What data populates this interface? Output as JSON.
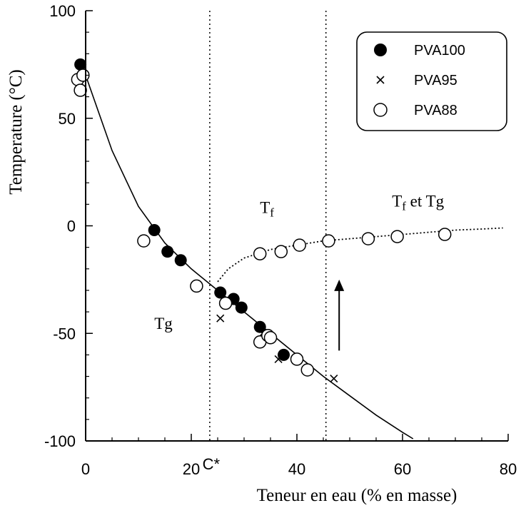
{
  "chart_data": {
    "type": "scatter",
    "title": "",
    "xlabel": "Teneur en eau (% en masse)",
    "ylabel": "Temperature (°C)",
    "xlim": [
      0,
      80
    ],
    "ylim": [
      -100,
      100
    ],
    "x_ticks": [
      0,
      20,
      40,
      60,
      80
    ],
    "x_tick_labels": [
      "0",
      "20",
      "40",
      "60",
      "80"
    ],
    "y_ticks": [
      -100,
      -50,
      0,
      50,
      100
    ],
    "y_tick_labels": [
      "-100",
      "-50",
      "0",
      "50",
      "100"
    ],
    "grid": false,
    "legend_position": "top-right",
    "series": [
      {
        "name": "PVA100",
        "marker": "filled-circle",
        "points": [
          [
            -1,
            75
          ],
          [
            13,
            -2
          ],
          [
            15.5,
            -12
          ],
          [
            18,
            -16
          ],
          [
            25.5,
            -31
          ],
          [
            28,
            -34
          ],
          [
            29.5,
            -38
          ],
          [
            33,
            -47
          ],
          [
            37.5,
            -60
          ]
        ]
      },
      {
        "name": "PVA95",
        "marker": "cross",
        "points": [
          [
            -1,
            72
          ],
          [
            25.5,
            -43
          ],
          [
            33.5,
            -50
          ],
          [
            36.5,
            -62
          ],
          [
            47,
            -71
          ]
        ]
      },
      {
        "name": "PVA88",
        "marker": "open-circle",
        "points": [
          [
            -1.5,
            68
          ],
          [
            -0.5,
            70
          ],
          [
            -1,
            63
          ],
          [
            11,
            -7
          ],
          [
            21,
            -28
          ],
          [
            26.5,
            -36
          ],
          [
            33,
            -54
          ],
          [
            34.5,
            -51
          ],
          [
            35,
            -52
          ],
          [
            40,
            -62
          ],
          [
            42,
            -67
          ],
          [
            33,
            -13
          ],
          [
            37,
            -12
          ],
          [
            40.5,
            -9
          ],
          [
            46,
            -7
          ],
          [
            53.5,
            -6
          ],
          [
            59,
            -5
          ],
          [
            68,
            -4
          ]
        ]
      }
    ],
    "curves": [
      {
        "name": "Tg",
        "style": "solid",
        "points": [
          [
            0,
            70
          ],
          [
            5,
            35
          ],
          [
            10,
            9
          ],
          [
            15,
            -8
          ],
          [
            20,
            -20
          ],
          [
            25,
            -30
          ],
          [
            30,
            -40
          ],
          [
            35,
            -50
          ],
          [
            40,
            -60
          ],
          [
            45,
            -70
          ],
          [
            50,
            -79
          ],
          [
            55,
            -88
          ],
          [
            60,
            -96
          ],
          [
            62,
            -99
          ]
        ]
      },
      {
        "name": "Tf",
        "style": "dotted",
        "points": [
          [
            25,
            -26
          ],
          [
            27,
            -20
          ],
          [
            30,
            -15
          ],
          [
            35,
            -11
          ],
          [
            40,
            -9
          ],
          [
            45,
            -7
          ],
          [
            50,
            -6
          ],
          [
            55,
            -5
          ],
          [
            60,
            -4
          ],
          [
            65,
            -3
          ],
          [
            70,
            -2
          ],
          [
            75,
            -1.5
          ],
          [
            79,
            -1
          ]
        ]
      }
    ],
    "vlines": [
      {
        "x": 23.5,
        "style": "dotted",
        "label": "C*"
      },
      {
        "x": 45.5,
        "style": "dotted"
      }
    ],
    "annotations": [
      {
        "text_main": "T",
        "text_sub": "f",
        "x": 33,
        "y": 6
      },
      {
        "text_main": "T",
        "text_sub": "f",
        "text_rest": " et Tg",
        "x": 58,
        "y": 9
      },
      {
        "text_main": "Tg",
        "x": 13,
        "y": -48
      },
      {
        "arrow": "up",
        "x": 48,
        "y_from": -58,
        "y_to": -25
      }
    ]
  }
}
